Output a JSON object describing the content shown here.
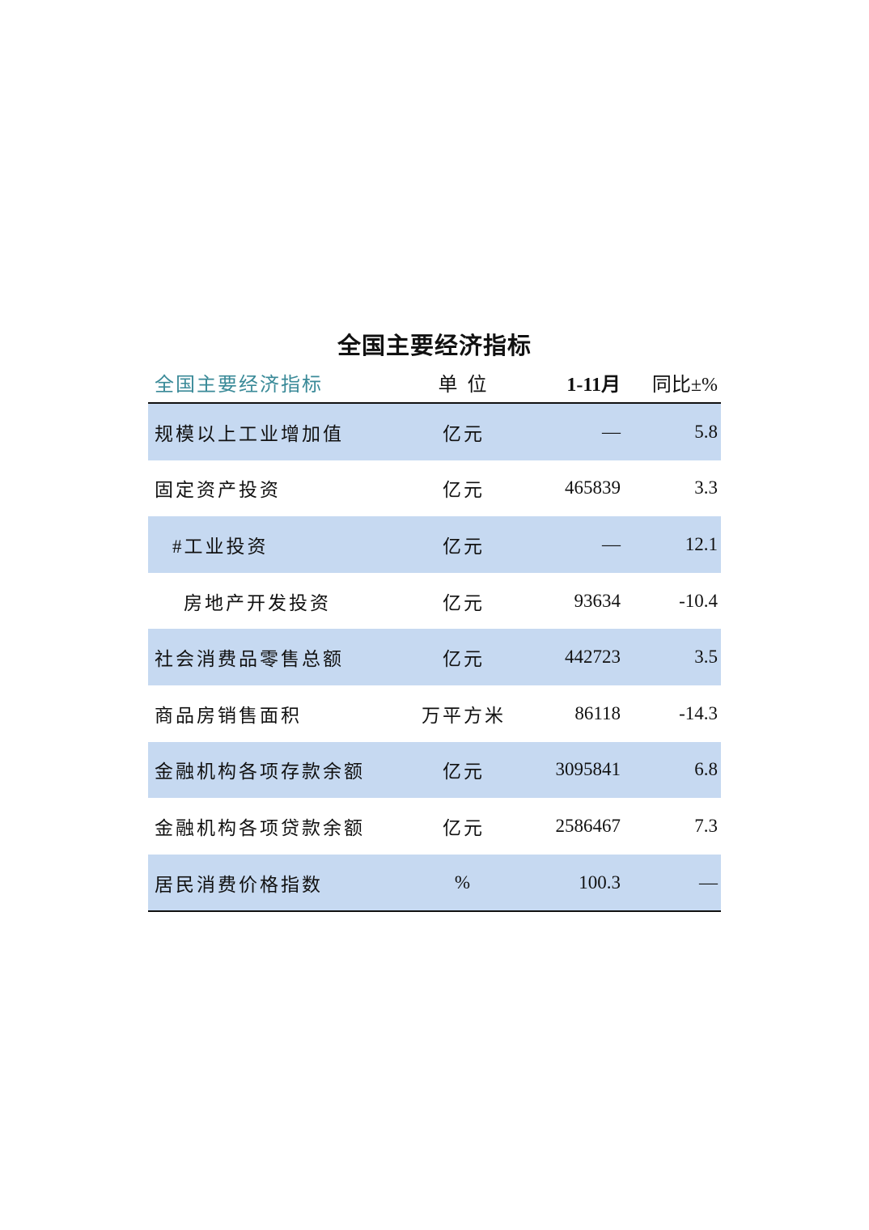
{
  "title": "全国主要经济指标",
  "header": {
    "indicator": "全国主要经济指标",
    "unit": "单 位",
    "period": "1-11月",
    "yoy": "同比±%"
  },
  "rows": [
    {
      "name": "规模以上工业增加值",
      "unit": "亿元",
      "value": "—",
      "yoy": "5.8",
      "indent": 0
    },
    {
      "name": "固定资产投资",
      "unit": "亿元",
      "value": "465839",
      "yoy": "3.3",
      "indent": 0
    },
    {
      "name": "#工业投资",
      "unit": "亿元",
      "value": "—",
      "yoy": "12.1",
      "indent": 1
    },
    {
      "name": "房地产开发投资",
      "unit": "亿元",
      "value": "93634",
      "yoy": "-10.4",
      "indent": 2
    },
    {
      "name": "社会消费品零售总额",
      "unit": "亿元",
      "value": "442723",
      "yoy": "3.5",
      "indent": 0
    },
    {
      "name": "商品房销售面积",
      "unit": "万平方米",
      "value": "86118",
      "yoy": "-14.3",
      "indent": 0
    },
    {
      "name": "金融机构各项存款余额",
      "unit": "亿元",
      "value": "3095841",
      "yoy": "6.8",
      "indent": 0
    },
    {
      "name": "金融机构各项贷款余额",
      "unit": "亿元",
      "value": "2586467",
      "yoy": "7.3",
      "indent": 0
    },
    {
      "name": "居民消费价格指数",
      "unit": "%",
      "value": "100.3",
      "yoy": "—",
      "indent": 0
    }
  ],
  "colors": {
    "header_text": "#3a8a98",
    "band": "#c6d9f1"
  }
}
